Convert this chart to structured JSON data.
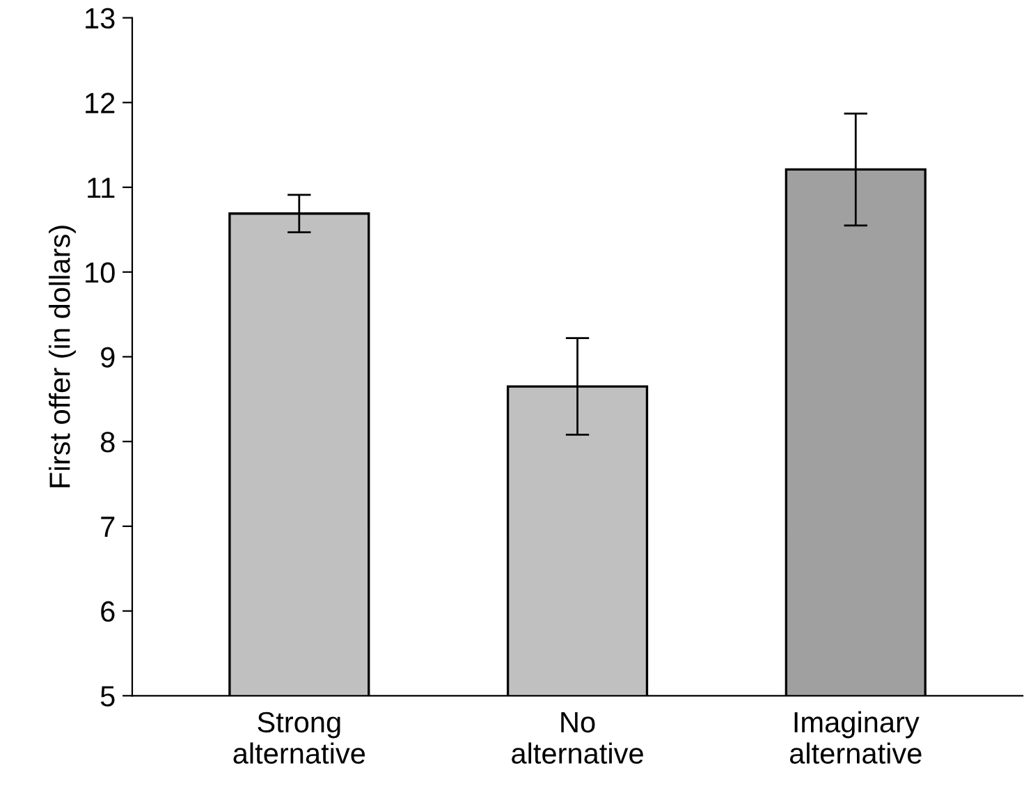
{
  "chart_data": {
    "type": "bar",
    "ylabel": "First offer (in dollars)",
    "categories": [
      "Strong\nalternative",
      "No\nalternative",
      "Imaginary\nalternative"
    ],
    "values": [
      10.69,
      8.65,
      11.21
    ],
    "errors": [
      0.22,
      0.57,
      0.66
    ],
    "colors": [
      "#c0c0c0",
      "#c0c0c0",
      "#a0a0a0"
    ],
    "ylim": [
      5,
      13
    ],
    "yticks": [
      5,
      6,
      7,
      8,
      9,
      10,
      11,
      12,
      13
    ],
    "grid": false,
    "legend": false
  }
}
